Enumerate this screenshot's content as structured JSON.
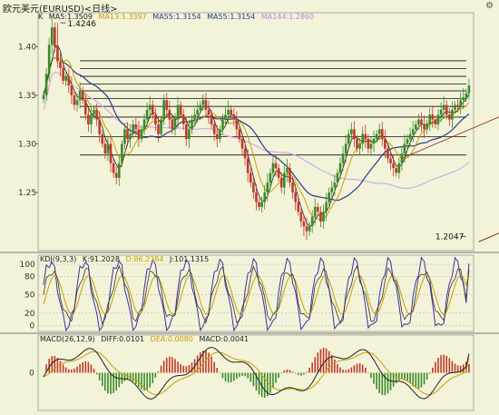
{
  "window": {
    "title": "欧元美元(EURUSD)<日线>"
  },
  "price_panel": {
    "k_label": "K",
    "ma": [
      {
        "label": "MA5:1.3509",
        "color": "#222222"
      },
      {
        "label": "MA13:1.3397",
        "color": "#c8a000"
      },
      {
        "label": "MA55:1.3154",
        "color": "#333333"
      },
      {
        "label": "MA55:1.3154",
        "color": "#333333"
      },
      {
        "label": "MA144:1.2860",
        "color": "#c080e0"
      }
    ],
    "high_label": "1.4246",
    "low_label": "1.2047"
  },
  "kdj_panel": {
    "labels": [
      {
        "text": "KDJ(9,3,3)",
        "color": "#222222"
      },
      {
        "text": "K:91.2028",
        "color": "#222222"
      },
      {
        "text": "D:86.2384",
        "color": "#c8a000"
      },
      {
        "text": "J:101.1315",
        "color": "#222222"
      }
    ]
  },
  "macd_panel": {
    "labels": [
      {
        "text": "MACD(26,12,9)",
        "color": "#222222"
      },
      {
        "text": "DIFF:0.0101",
        "color": "#222222"
      },
      {
        "text": "DEA:0.0080",
        "color": "#c8a000"
      },
      {
        "text": "MACD:0.0041",
        "color": "#222222"
      }
    ]
  },
  "colors": {
    "background": "#f3f3d9",
    "bull": "#3a8a2a",
    "bear": "#c0392b",
    "ma5": "#222222",
    "ma13": "#c8a000",
    "ma55": "#283a8a",
    "ma144": "#d8a8e8",
    "kline": "#4030a0",
    "dline": "#c8a000",
    "jline": "#333333"
  },
  "chart_data": [
    {
      "type": "candlestick",
      "title": "欧元美元(EURUSD)<日线>",
      "ylim": [
        1.19,
        1.435
      ],
      "yticks": [
        1.25,
        1.3,
        1.35,
        1.4
      ],
      "yticklabels": [
        "1.25",
        "1.30",
        "1.35",
        "1.40"
      ],
      "annotations": [
        {
          "text": "1.4246",
          "x": 6,
          "y": 1.4246
        },
        {
          "text": "1.2047",
          "x": 151,
          "y": 1.2047
        }
      ],
      "horizontal_levels": [
        1.3855,
        1.3775,
        1.3695,
        1.3615,
        1.3545,
        1.3465,
        1.3385,
        1.3275,
        1.3075,
        1.2885
      ],
      "trendline": {
        "x": [
          160,
          275
        ],
        "y": [
          1.2047,
          1.346
        ]
      },
      "series": [
        {
          "name": "MA5",
          "value": 1.3509
        },
        {
          "name": "MA13",
          "value": 1.3397
        },
        {
          "name": "MA55",
          "value": 1.3154
        },
        {
          "name": "MA144",
          "value": 1.286
        }
      ],
      "closes": [
        1.35,
        1.372,
        1.402,
        1.42,
        1.4,
        1.385,
        1.378,
        1.365,
        1.37,
        1.36,
        1.35,
        1.34,
        1.345,
        1.355,
        1.345,
        1.33,
        1.32,
        1.33,
        1.335,
        1.325,
        1.31,
        1.3,
        1.29,
        1.3,
        1.28,
        1.27,
        1.265,
        1.28,
        1.3,
        1.315,
        1.305,
        1.31,
        1.32,
        1.315,
        1.305,
        1.315,
        1.325,
        1.335,
        1.34,
        1.33,
        1.32,
        1.31,
        1.325,
        1.345,
        1.335,
        1.325,
        1.315,
        1.325,
        1.34,
        1.33,
        1.32,
        1.305,
        1.315,
        1.325,
        1.33,
        1.335,
        1.34,
        1.345,
        1.335,
        1.33,
        1.32,
        1.31,
        1.305,
        1.315,
        1.325,
        1.33,
        1.335,
        1.33,
        1.325,
        1.315,
        1.305,
        1.295,
        1.285,
        1.27,
        1.26,
        1.25,
        1.24,
        1.235,
        1.24,
        1.25,
        1.26,
        1.27,
        1.28,
        1.275,
        1.265,
        1.255,
        1.27,
        1.275,
        1.26,
        1.25,
        1.24,
        1.23,
        1.22,
        1.215,
        1.21,
        1.215,
        1.225,
        1.235,
        1.23,
        1.22,
        1.23,
        1.24,
        1.25,
        1.255,
        1.26,
        1.27,
        1.28,
        1.29,
        1.3,
        1.31,
        1.315,
        1.305,
        1.295,
        1.3,
        1.31,
        1.305,
        1.295,
        1.3,
        1.305,
        1.31,
        1.315,
        1.305,
        1.295,
        1.285,
        1.28,
        1.275,
        1.27,
        1.28,
        1.29,
        1.3,
        1.305,
        1.31,
        1.315,
        1.32,
        1.325,
        1.32,
        1.315,
        1.32,
        1.33,
        1.325,
        1.32,
        1.33,
        1.335,
        1.34,
        1.33,
        1.325,
        1.335,
        1.34,
        1.338,
        1.345,
        1.348,
        1.352,
        1.36
      ]
    },
    {
      "type": "line",
      "title": "KDJ(9,3,3)",
      "ylim": [
        -10,
        115
      ],
      "yticks": [
        0,
        20,
        50,
        80,
        100
      ],
      "yticklabels": [
        "0",
        "20",
        "50",
        "80",
        "100"
      ],
      "series": [
        {
          "name": "K",
          "value": 91.2028
        },
        {
          "name": "D",
          "value": 86.2384
        },
        {
          "name": "J",
          "value": 101.1315
        }
      ]
    },
    {
      "type": "bar",
      "title": "MACD(26,12,9)",
      "ylim": [
        -0.02,
        0.02
      ],
      "yticks": [
        0
      ],
      "yticklabels": [
        "0"
      ],
      "series": [
        {
          "name": "DIFF",
          "value": 0.0101
        },
        {
          "name": "DEA",
          "value": 0.008
        },
        {
          "name": "MACD",
          "value": 0.0041
        }
      ]
    }
  ]
}
